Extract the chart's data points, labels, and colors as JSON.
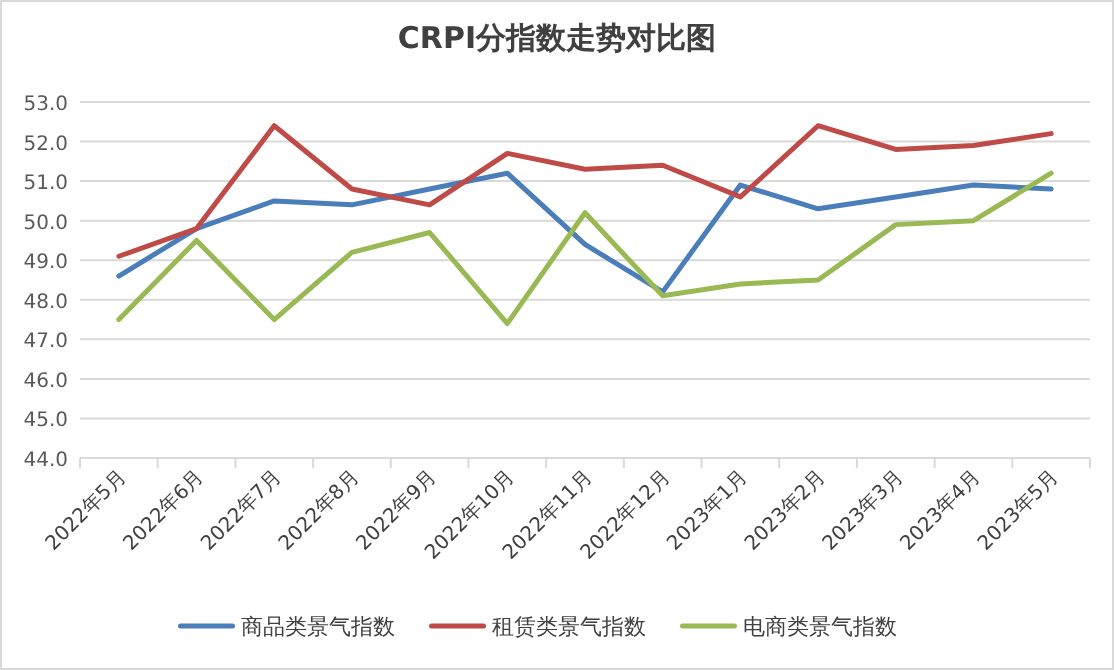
{
  "chart_data": {
    "type": "line",
    "title": "CRPI分指数走势对比图",
    "categories": [
      "2022年5月",
      "2022年6月",
      "2022年7月",
      "2022年8月",
      "2022年9月",
      "2022年10月",
      "2022年11月",
      "2022年12月",
      "2023年1月",
      "2023年2月",
      "2023年3月",
      "2023年4月",
      "2023年5月"
    ],
    "series": [
      {
        "name": "商品类景气指数",
        "color": "#4a7ebb",
        "values": [
          48.6,
          49.8,
          50.5,
          50.4,
          50.8,
          51.2,
          49.4,
          48.2,
          50.9,
          50.3,
          50.6,
          50.9,
          50.8
        ]
      },
      {
        "name": "租赁类景气指数",
        "color": "#be4b48",
        "values": [
          49.1,
          49.8,
          52.4,
          50.8,
          50.4,
          51.7,
          51.3,
          51.4,
          50.6,
          52.4,
          51.8,
          51.9,
          52.2
        ]
      },
      {
        "name": "电商类景气指数",
        "color": "#98b954",
        "values": [
          47.5,
          49.5,
          47.5,
          49.2,
          49.7,
          47.4,
          50.2,
          48.1,
          48.4,
          48.5,
          49.9,
          50.0,
          51.2
        ]
      }
    ],
    "ylim": [
      44,
      53
    ],
    "yticks": [
      {
        "value": 44,
        "label": "44.0"
      },
      {
        "value": 45,
        "label": "45.0"
      },
      {
        "value": 46,
        "label": "46.0"
      },
      {
        "value": 47,
        "label": "47.0"
      },
      {
        "value": 48,
        "label": "48.0"
      },
      {
        "value": 49,
        "label": "49.0"
      },
      {
        "value": 50,
        "label": "50.0"
      },
      {
        "value": 51,
        "label": "51.0"
      },
      {
        "value": 52,
        "label": "52.0"
      },
      {
        "value": 53,
        "label": "53.0"
      }
    ],
    "grid": "y",
    "legend": "bottom",
    "marker": "none",
    "line_style": "solid"
  }
}
